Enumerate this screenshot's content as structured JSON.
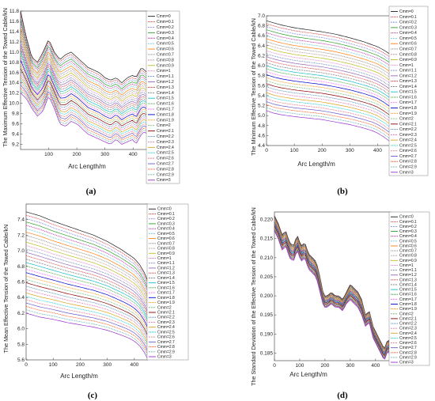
{
  "legend_labels": [
    "Cmm=0",
    "Cmm=0.1",
    "Cmm=0.2",
    "Cmm=0.3",
    "Cmm=0.4",
    "Cmm=0.5",
    "Cmm=0.6",
    "Cmm=0.7",
    "Cmm=0.8",
    "Cmm=0.9",
    "Cmm=1",
    "Cmm=1.1",
    "Cmm=1.2",
    "Cmm=1.3",
    "Cmm=1.4",
    "Cmm=1.5",
    "Cmm=1.6",
    "Cmm=1.7",
    "Cmm=1.8",
    "Cmm=1.9",
    "Cmm=2",
    "Cmm=2.1",
    "Cmm=2.2",
    "Cmm=2.3",
    "Cmm=2.4",
    "Cmm=2.5",
    "Cmm=2.6",
    "Cmm=2.7",
    "Cmm=2.8",
    "Cmm=2.9",
    "Cmm=3"
  ],
  "series_colors": [
    "#1a1a1a",
    "#d62728",
    "#1f3fd6",
    "#2ca02c",
    "#b5179e",
    "#17a2b8",
    "#ff7f0e",
    "#7f7f7f",
    "#8c564b",
    "#bcbd22",
    "#e377c2",
    "#0b3d91",
    "#9467bd",
    "#d62728",
    "#1a1a1a",
    "#17becf",
    "#2ca02c",
    "#ff00ff",
    "#0000cd",
    "#ff8c00",
    "#228b22",
    "#8b0000",
    "#4682b4",
    "#c71585",
    "#daa520",
    "#00ced1",
    "#dc143c",
    "#6a5acd",
    "#ff4500",
    "#008080",
    "#9932cc"
  ],
  "panels": [
    {
      "caption": "(a)",
      "chart_data": {
        "type": "line",
        "title": "",
        "xlabel": "Arc Length/m",
        "ylabel": "The Maximum Effective Tension of the Towed Cable/kN",
        "xlim": [
          0,
          450
        ],
        "ylim": [
          9.1,
          11.8
        ],
        "xticks": [
          "100",
          "200",
          "300",
          "400"
        ],
        "yticks": [
          "9.2",
          "9.4",
          "9.6",
          "9.8",
          "10.0",
          "10.2",
          "10.4",
          "10.6",
          "10.8",
          "11.0",
          "11.2",
          "11.4",
          "11.6",
          "11.8"
        ],
        "series_param": {
          "name": "Cmm",
          "values": [
            0,
            0.1,
            0.2,
            0.3,
            0.4,
            0.5,
            0.6,
            0.7,
            0.8,
            0.9,
            1,
            1.1,
            1.2,
            1.3,
            1.4,
            1.5,
            1.6,
            1.7,
            1.8,
            1.9,
            2,
            2.1,
            2.2,
            2.3,
            2.4,
            2.5,
            2.6,
            2.7,
            2.8,
            2.9,
            3
          ]
        },
        "curve_top": {
          "x": [
            0,
            20,
            40,
            60,
            80,
            100,
            120,
            140,
            160,
            180,
            200,
            220,
            240,
            260,
            280,
            300,
            320,
            340,
            360,
            380,
            400,
            410,
            420,
            430,
            440,
            450
          ],
          "y": [
            11.8,
            11.3,
            10.9,
            10.8,
            11.0,
            11.25,
            11.0,
            10.85,
            10.95,
            11.0,
            10.9,
            10.8,
            10.7,
            10.65,
            10.6,
            10.5,
            10.45,
            10.5,
            10.4,
            10.5,
            10.55,
            10.5,
            10.6,
            10.7,
            10.65,
            10.6
          ]
        },
        "curve_bottom": {
          "x": [
            0,
            20,
            40,
            60,
            80,
            100,
            120,
            140,
            160,
            180,
            200,
            220,
            240,
            260,
            280,
            300,
            320,
            340,
            360,
            380,
            400,
            410,
            420,
            430,
            440,
            450
          ],
          "y": [
            10.2,
            10.1,
            9.9,
            9.75,
            9.85,
            10.15,
            9.9,
            9.6,
            9.55,
            9.65,
            9.6,
            9.5,
            9.4,
            9.35,
            9.3,
            9.25,
            9.2,
            9.3,
            9.2,
            9.25,
            9.3,
            9.2,
            9.3,
            9.4,
            9.45,
            9.4
          ]
        }
      }
    },
    {
      "caption": "(b)",
      "chart_data": {
        "type": "line",
        "title": "",
        "xlabel": "Arc Length/m",
        "ylabel": "The Minimum Effective Tension of the Towed Cable/kN",
        "xlim": [
          0,
          450
        ],
        "ylim": [
          4.4,
          7.0
        ],
        "xticks": [
          "0",
          "100",
          "200",
          "300",
          "400"
        ],
        "yticks": [
          "4.4",
          "4.6",
          "4.8",
          "5.0",
          "5.2",
          "5.4",
          "5.6",
          "5.8",
          "6.0",
          "6.2",
          "6.4",
          "6.6",
          "6.8",
          "7.0"
        ],
        "series_param": {
          "name": "Cmm",
          "values": [
            0,
            0.1,
            0.2,
            0.3,
            0.4,
            0.5,
            0.6,
            0.7,
            0.8,
            0.9,
            1,
            1.1,
            1.2,
            1.3,
            1.4,
            1.5,
            1.6,
            1.7,
            1.8,
            1.9,
            2,
            2.1,
            2.2,
            2.3,
            2.4,
            2.5,
            2.6,
            2.7,
            2.8,
            2.9,
            3
          ]
        },
        "curve_top": {
          "x": [
            0,
            25,
            50,
            100,
            150,
            200,
            250,
            300,
            350,
            380,
            400,
            420,
            440,
            450
          ],
          "y": [
            6.9,
            6.86,
            6.82,
            6.76,
            6.72,
            6.68,
            6.63,
            6.56,
            6.48,
            6.42,
            6.38,
            6.32,
            6.25,
            6.2
          ]
        },
        "curve_bottom": {
          "x": [
            0,
            25,
            50,
            100,
            150,
            200,
            250,
            300,
            350,
            380,
            400,
            420,
            440,
            450
          ],
          "y": [
            5.1,
            5.05,
            5.02,
            4.98,
            4.95,
            4.92,
            4.87,
            4.82,
            4.75,
            4.7,
            4.65,
            4.58,
            4.5,
            4.45
          ]
        }
      }
    },
    {
      "caption": "(c)",
      "chart_data": {
        "type": "line",
        "title": "",
        "xlabel": "Arc Length/m",
        "ylabel": "The Mean Effective Tension of the Towed Cable/kN",
        "xlim": [
          0,
          450
        ],
        "ylim": [
          5.6,
          7.6
        ],
        "xticks": [
          "0",
          "100",
          "200",
          "300",
          "400"
        ],
        "yticks": [
          "5.6",
          "5.8",
          "6.0",
          "6.2",
          "6.4",
          "6.6",
          "6.8",
          "7.0",
          "7.2",
          "7.4"
        ],
        "series_param": {
          "name": "Cmm",
          "values": [
            0,
            0.1,
            0.2,
            0.3,
            0.4,
            0.5,
            0.6,
            0.7,
            0.8,
            0.9,
            1,
            1.1,
            1.2,
            1.3,
            1.4,
            1.5,
            1.6,
            1.7,
            1.8,
            1.9,
            2,
            2.1,
            2.2,
            2.3,
            2.4,
            2.5,
            2.6,
            2.7,
            2.8,
            2.9,
            3
          ]
        },
        "curve_top": {
          "x": [
            0,
            50,
            100,
            150,
            200,
            250,
            300,
            350,
            380,
            400,
            420,
            440,
            450
          ],
          "y": [
            7.5,
            7.45,
            7.38,
            7.32,
            7.26,
            7.2,
            7.12,
            7.02,
            6.95,
            6.9,
            6.82,
            6.7,
            6.6
          ]
        },
        "curve_bottom": {
          "x": [
            0,
            50,
            100,
            150,
            200,
            250,
            300,
            350,
            380,
            400,
            420,
            440,
            450
          ],
          "y": [
            6.2,
            6.15,
            6.12,
            6.08,
            6.05,
            6.02,
            5.98,
            5.92,
            5.88,
            5.84,
            5.78,
            5.68,
            5.6
          ]
        }
      }
    },
    {
      "caption": "(d)",
      "chart_data": {
        "type": "line",
        "title": "",
        "xlabel": "Arc Length/m",
        "ylabel": "The Standard Deviation of the Effective Tension of the Towed Cable/kN",
        "xlim": [
          0,
          460
        ],
        "ylim": [
          0.183,
          0.222
        ],
        "xticks": [
          "0",
          "100",
          "200",
          "300",
          "400"
        ],
        "yticks": [
          "0.185",
          "0.190",
          "0.195",
          "0.200",
          "0.205",
          "0.210",
          "0.215",
          "0.220"
        ],
        "series_param": {
          "name": "Cmm",
          "values": [
            0,
            0.1,
            0.2,
            0.3,
            0.4,
            0.5,
            0.6,
            0.7,
            0.8,
            0.9,
            1,
            1.1,
            1.2,
            1.3,
            1.4,
            1.5,
            1.6,
            1.7,
            1.8,
            1.9,
            2,
            2.1,
            2.2,
            2.3,
            2.4,
            2.5,
            2.6,
            2.7,
            2.8,
            2.9,
            3
          ]
        },
        "curve_top": {
          "x": [
            0,
            15,
            30,
            45,
            60,
            75,
            90,
            105,
            120,
            135,
            150,
            165,
            180,
            195,
            210,
            225,
            240,
            255,
            270,
            285,
            300,
            315,
            330,
            345,
            360,
            375,
            390,
            405,
            420,
            435,
            450,
            460
          ],
          "y": [
            0.221,
            0.219,
            0.216,
            0.217,
            0.214,
            0.213,
            0.216,
            0.213,
            0.214,
            0.211,
            0.21,
            0.209,
            0.205,
            0.2,
            0.2,
            0.201,
            0.2,
            0.2,
            0.199,
            0.201,
            0.203,
            0.202,
            0.201,
            0.199,
            0.195,
            0.196,
            0.192,
            0.19,
            0.188,
            0.186,
            0.189,
            0.186
          ]
        },
        "curve_bottom": {
          "x": [
            0,
            15,
            30,
            45,
            60,
            75,
            90,
            105,
            120,
            135,
            150,
            165,
            180,
            195,
            210,
            225,
            240,
            255,
            270,
            285,
            300,
            315,
            330,
            345,
            360,
            375,
            390,
            405,
            420,
            435,
            450,
            460
          ],
          "y": [
            0.217,
            0.215,
            0.212,
            0.213,
            0.21,
            0.209,
            0.212,
            0.209,
            0.21,
            0.207,
            0.206,
            0.205,
            0.201,
            0.197,
            0.197,
            0.198,
            0.197,
            0.197,
            0.196,
            0.198,
            0.199,
            0.198,
            0.197,
            0.195,
            0.192,
            0.193,
            0.189,
            0.187,
            0.185,
            0.183,
            0.186,
            0.183
          ]
        }
      }
    }
  ]
}
